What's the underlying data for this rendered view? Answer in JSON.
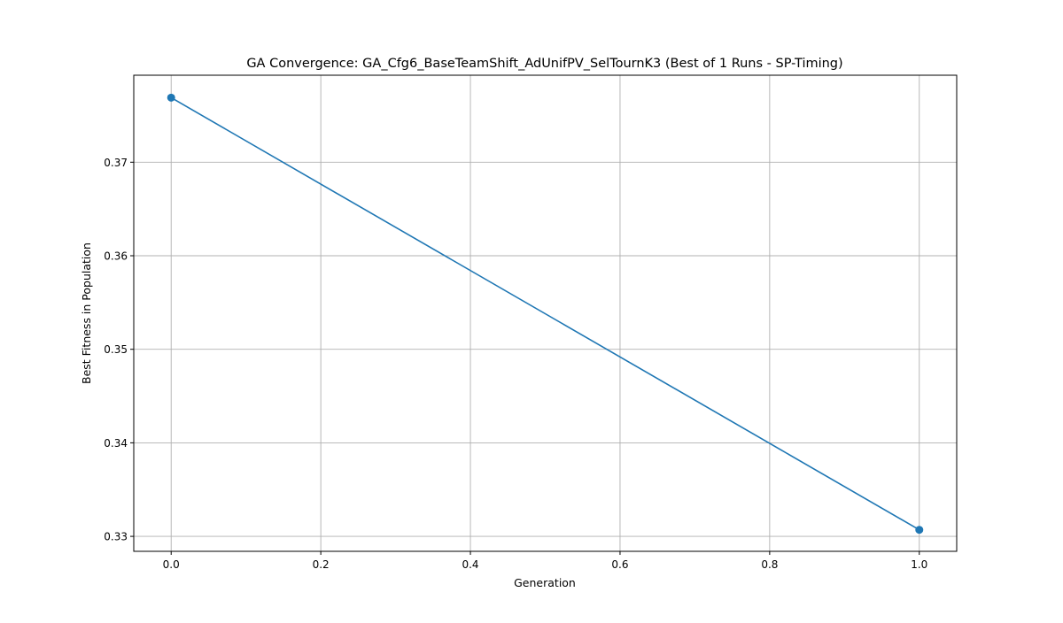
{
  "chart_data": {
    "type": "line",
    "title": "GA Convergence: GA_Cfg6_BaseTeamShift_AdUnifPV_SelTournK3 (Best of 1 Runs - SP-Timing)",
    "xlabel": "Generation",
    "ylabel": "Best Fitness in Population",
    "xlim": [
      -0.05,
      1.05
    ],
    "ylim": [
      0.3284,
      0.3793
    ],
    "x_ticks": [
      0.0,
      0.2,
      0.4,
      0.6,
      0.8,
      1.0
    ],
    "x_tick_labels": [
      "0.0",
      "0.2",
      "0.4",
      "0.6",
      "0.8",
      "1.0"
    ],
    "y_ticks": [
      0.33,
      0.34,
      0.35,
      0.36,
      0.37
    ],
    "y_tick_labels": [
      "0.33",
      "0.34",
      "0.35",
      "0.36",
      "0.37"
    ],
    "grid": true,
    "legend": false,
    "series": [
      {
        "x": [
          0,
          1
        ],
        "y": [
          0.3769,
          0.3307
        ],
        "color": "#1f77b4",
        "marker": "circle"
      }
    ]
  }
}
